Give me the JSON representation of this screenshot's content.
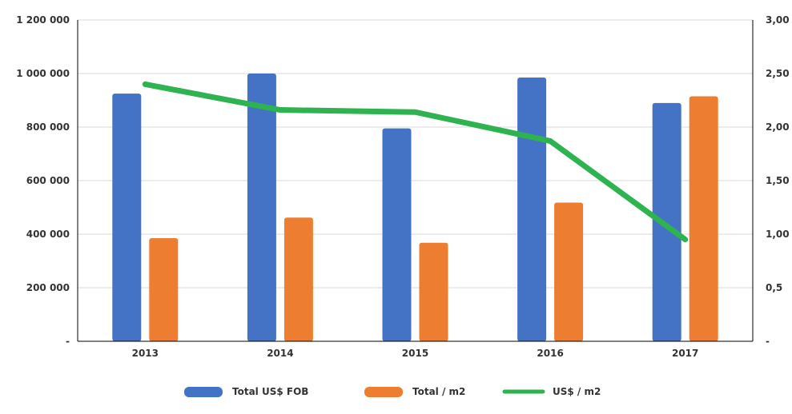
{
  "chart_data": {
    "type": "bar",
    "categories": [
      "2013",
      "2014",
      "2015",
      "2016",
      "2017"
    ],
    "series": [
      {
        "name": "Total US$ FOB",
        "type": "bar",
        "axis": "left",
        "color": "#4472c4",
        "values": [
          925000,
          1000000,
          795000,
          985000,
          890000
        ]
      },
      {
        "name": "Total / m2",
        "type": "bar",
        "axis": "left",
        "color": "#ed7d31",
        "values": [
          385000,
          462000,
          368000,
          518000,
          915000
        ]
      },
      {
        "name": "US$ / m2",
        "type": "line",
        "axis": "right",
        "color": "#2eb350",
        "values": [
          2.4,
          2.16,
          2.14,
          1.87,
          0.95
        ]
      }
    ],
    "y_left": {
      "ylim": [
        0,
        1200000
      ],
      "tick_values": [
        0,
        200000,
        400000,
        600000,
        800000,
        1000000,
        1200000
      ],
      "tick_labels": [
        "-",
        "200 000",
        "400 000",
        "600 000",
        "800 000",
        "1 000 000",
        "1 200 000"
      ]
    },
    "y_right": {
      "ylim": [
        0,
        3
      ],
      "tick_values": [
        0,
        0.5,
        1,
        1.5,
        2,
        2.5,
        3
      ],
      "tick_labels": [
        "-",
        "0,5",
        "1,00",
        "1,50",
        "2,00",
        "2,50",
        "3,00"
      ]
    },
    "grid": true,
    "legend_position": "bottom",
    "title": "",
    "xlabel": "",
    "ylabel": ""
  }
}
